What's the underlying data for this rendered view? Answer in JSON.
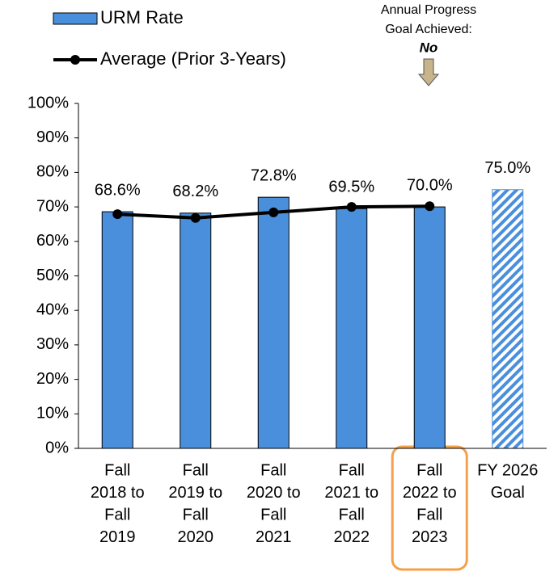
{
  "chart_data": {
    "type": "bar",
    "categories": [
      [
        "Fall",
        "2018 to",
        "Fall",
        "2019"
      ],
      [
        "Fall",
        "2019 to",
        "Fall",
        "2020"
      ],
      [
        "Fall",
        "2020 to",
        "Fall",
        "2021"
      ],
      [
        "Fall",
        "2021 to",
        "Fall",
        "2022"
      ],
      [
        "Fall",
        "2022 to",
        "Fall",
        "2023"
      ],
      [
        "FY 2026",
        "Goal"
      ]
    ],
    "series": [
      {
        "name": "URM Rate",
        "type": "bar",
        "color": "#4a8fdb",
        "values": [
          68.6,
          68.2,
          72.8,
          69.5,
          70.0,
          75.0
        ],
        "value_labels": [
          "68.6%",
          "68.2%",
          "72.8%",
          "69.5%",
          "70.0%",
          "75.0%"
        ],
        "hatched": [
          false,
          false,
          false,
          false,
          false,
          true
        ]
      },
      {
        "name": "Average (Prior 3-Years)",
        "type": "line",
        "color": "#000000",
        "values": [
          67.9,
          66.8,
          68.4,
          70.0,
          70.2,
          null
        ]
      }
    ],
    "ylim": [
      0,
      100
    ],
    "yticks": [
      {
        "value": 0,
        "label": "0%"
      },
      {
        "value": 10,
        "label": "10%"
      },
      {
        "value": 20,
        "label": "20%"
      },
      {
        "value": 30,
        "label": "30%"
      },
      {
        "value": 40,
        "label": "40%"
      },
      {
        "value": 50,
        "label": "50%"
      },
      {
        "value": 60,
        "label": "60%"
      },
      {
        "value": 70,
        "label": "70%"
      },
      {
        "value": 80,
        "label": "80%"
      },
      {
        "value": 90,
        "label": "90%"
      },
      {
        "value": 100,
        "label": "100%"
      }
    ],
    "annotation": {
      "lines": [
        "Annual Progress",
        "Goal Achieved:"
      ],
      "answer": "No"
    },
    "highlight_index": 4,
    "highlight_color": "#f5a04a"
  }
}
